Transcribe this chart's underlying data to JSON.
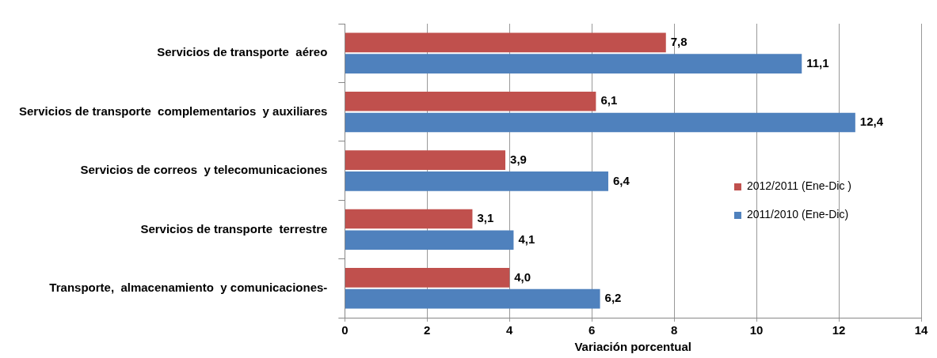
{
  "chart_data": {
    "type": "bar",
    "orientation": "horizontal",
    "xlabel": "Variación porcentual",
    "categories": [
      "Servicios de transporte  aéreo",
      "Servicios de transporte  complementarios  y auxiliares",
      "Servicios de correos  y telecomunicaciones",
      "Servicios de transporte  terrestre",
      "Transporte,  almacenamiento  y comunicaciones-"
    ],
    "series": [
      {
        "name": "2012/2011 (Ene-Dic )",
        "color": "#c0504d",
        "values": [
          7.8,
          6.1,
          3.9,
          3.1,
          4.0
        ],
        "value_labels": [
          "7,8",
          "6,1",
          "3,9",
          "3,1",
          "4,0"
        ]
      },
      {
        "name": "2011/2010 (Ene-Dic)",
        "color": "#4f81bd",
        "values": [
          11.1,
          12.4,
          6.4,
          4.1,
          6.2
        ],
        "value_labels": [
          "11,1",
          "12,4",
          "6,4",
          "4,1",
          "6,2"
        ]
      }
    ],
    "xlim": [
      0,
      14
    ],
    "xticks": [
      0,
      2,
      4,
      6,
      8,
      10,
      12,
      14
    ],
    "grid": "x",
    "legend": "right"
  }
}
